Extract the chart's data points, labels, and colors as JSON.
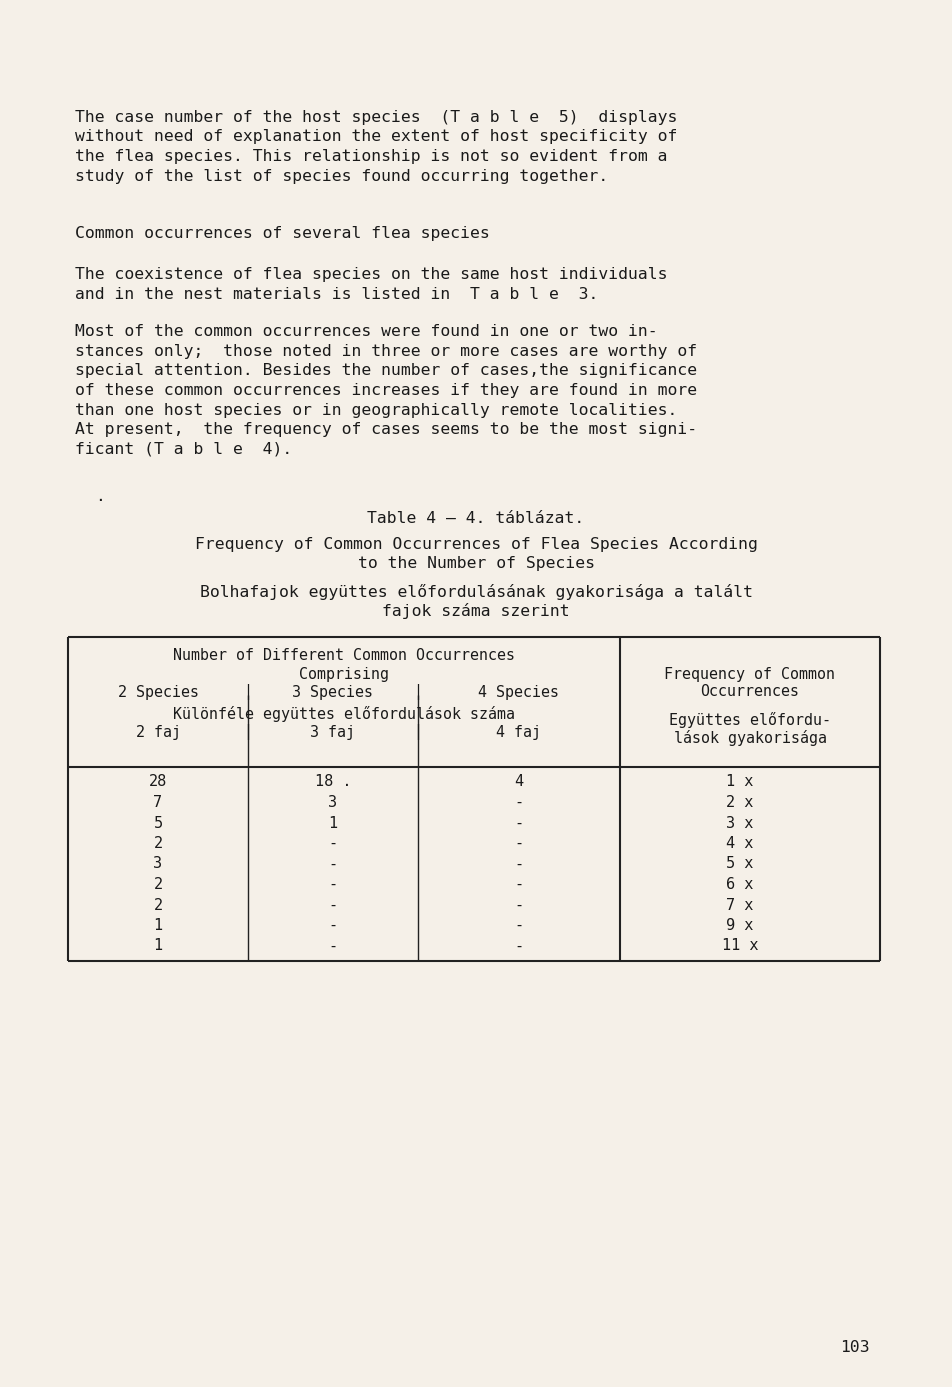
{
  "bg_color": "#f5f0e8",
  "text_color": "#1a1a1a",
  "page_number": "103",
  "paragraph1_lines": [
    "The case number of the host species  (T a b l e  5)  displays",
    "without need of explanation the extent of host specificity of",
    "the flea species. This relationship is not so evident from a",
    "study of the list of species found occurring together."
  ],
  "paragraph2_heading": "Common occurrences of several flea species",
  "paragraph3_lines": [
    "The coexistence of flea species on the same host individuals",
    "and in the nest materials is listed in  T a b l e  3."
  ],
  "paragraph4_lines": [
    "Most of the common occurrences were found in one or two in-",
    "stances only;  those noted in three or more cases are worthy of",
    "special attention. Besides the number of cases,the significance",
    "of these common occurrences increases if they are found in more",
    "than one host species or in geographically remote localities.",
    "At present,  the frequency of cases seems to be the most signi-",
    "ficant (T a b l e  4)."
  ],
  "table_title1": "Table 4 – 4. táblázat.",
  "table_title2_lines": [
    "Frequency of Common Occurrences of Flea Species According",
    "to the Number of Species"
  ],
  "table_title3_lines": [
    "Bolhafajok együttes előfordulásának gyakorisága a talált",
    "fajok száma szerint"
  ],
  "hdr_left_line1": "Number of Different Common Occurrences",
  "hdr_left_line2": "Comprising",
  "hdr_col1_label_en": "2 Species",
  "hdr_col2_label_en": "3 Species",
  "hdr_col3_label_en": "4 Species",
  "hdr_left_line4": "Különféle együttes előfordulások száma",
  "hdr_col1_label_hu": "2 faj",
  "hdr_col2_label_hu": "3 faj",
  "hdr_col3_label_hu": "4 faj",
  "hdr_right_line1": "Frequency of Common",
  "hdr_right_line2": "Occurrences",
  "hdr_right_line3": "Együttes előfordu-",
  "hdr_right_line4": "lások gyakorisága",
  "data_col1": [
    "28",
    "7",
    "5",
    "2",
    "3",
    "2",
    "2",
    "1",
    "1"
  ],
  "data_col2": [
    "18 .",
    "3",
    "1",
    "-",
    "-",
    "-",
    "-",
    "-",
    "-"
  ],
  "data_col3": [
    "4",
    "-",
    "-",
    "-",
    "-",
    "-",
    "-",
    "-",
    "-"
  ],
  "data_col4": [
    "1 x",
    "2 x",
    "3 x",
    "4 x",
    "5 x",
    "6 x",
    "7 x",
    "9 x",
    "11 x"
  ],
  "font_size_body": 11.8,
  "font_size_table_hdr": 10.8,
  "font_size_table_data": 11.0
}
